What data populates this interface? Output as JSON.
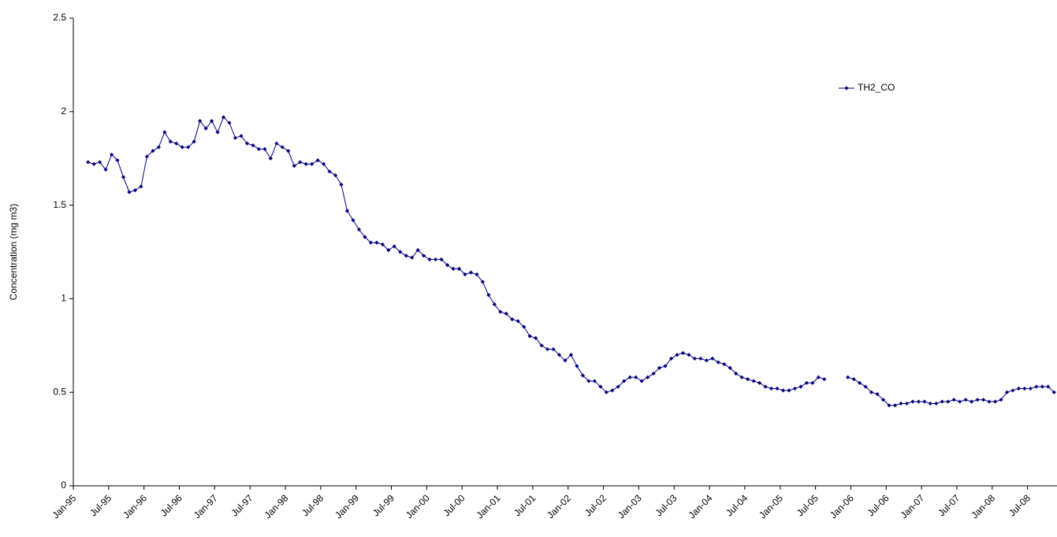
{
  "chart_data": {
    "type": "line",
    "y_label": "Concentration (mg m3)",
    "categories": [
      "Jan-95",
      null,
      null,
      null,
      null,
      null,
      "Jul-95",
      null,
      null,
      null,
      null,
      null,
      "Jan-96",
      null,
      null,
      null,
      null,
      null,
      "Jul-96",
      null,
      null,
      null,
      null,
      null,
      "Jan-97",
      null,
      null,
      null,
      null,
      null,
      "Jul-97",
      null,
      null,
      null,
      null,
      null,
      "Jan-98",
      null,
      null,
      null,
      null,
      null,
      "Jul-98",
      null,
      null,
      null,
      null,
      null,
      "Jan-99",
      null,
      null,
      null,
      null,
      null,
      "Jul-99",
      null,
      null,
      null,
      null,
      null,
      "Jan-00",
      null,
      null,
      null,
      null,
      null,
      "Jul-00",
      null,
      null,
      null,
      null,
      null,
      "Jan-01",
      null,
      null,
      null,
      null,
      null,
      "Jul-01",
      null,
      null,
      null,
      null,
      null,
      "Jan-02",
      null,
      null,
      null,
      null,
      null,
      "Jul-02",
      null,
      null,
      null,
      null,
      null,
      "Jan-03",
      null,
      null,
      null,
      null,
      null,
      "Jul-03",
      null,
      null,
      null,
      null,
      null,
      "Jan-04",
      null,
      null,
      null,
      null,
      null,
      "Jul-04",
      null,
      null,
      null,
      null,
      null,
      "Jan-05",
      null,
      null,
      null,
      null,
      null,
      "Jul-05",
      null,
      null,
      null,
      null,
      null,
      "Jan-06",
      null,
      null,
      null,
      null,
      null,
      "Jul-06",
      null,
      null,
      null,
      null,
      null,
      "Jan-07",
      null,
      null,
      null,
      null,
      null,
      "Jul-07",
      null,
      null,
      null,
      null,
      null,
      "Jan-08",
      null,
      null,
      null,
      null,
      null,
      "Jul-08",
      null,
      null,
      null,
      null
    ],
    "series": [
      {
        "name": "TH2_CO",
        "color": "#000080",
        "values": [
          null,
          null,
          1.73,
          1.72,
          1.73,
          1.69,
          1.77,
          1.74,
          1.65,
          1.57,
          1.58,
          1.6,
          1.76,
          1.79,
          1.81,
          1.89,
          1.84,
          1.83,
          1.81,
          1.81,
          1.84,
          1.95,
          1.91,
          1.95,
          1.89,
          1.97,
          1.94,
          1.86,
          1.87,
          1.83,
          1.82,
          1.8,
          1.8,
          1.75,
          1.83,
          1.81,
          1.79,
          1.71,
          1.73,
          1.72,
          1.72,
          1.74,
          1.72,
          1.68,
          1.66,
          1.61,
          1.47,
          1.42,
          1.37,
          1.33,
          1.3,
          1.3,
          1.29,
          1.26,
          1.28,
          1.25,
          1.23,
          1.22,
          1.26,
          1.23,
          1.21,
          1.21,
          1.21,
          1.18,
          1.16,
          1.16,
          1.13,
          1.14,
          1.13,
          1.09,
          1.02,
          0.97,
          0.93,
          0.92,
          0.89,
          0.88,
          0.85,
          0.8,
          0.79,
          0.75,
          0.73,
          0.73,
          0.7,
          0.67,
          0.7,
          0.64,
          0.59,
          0.56,
          0.56,
          0.53,
          0.5,
          0.51,
          0.53,
          0.56,
          0.58,
          0.58,
          0.56,
          0.58,
          0.6,
          0.63,
          0.64,
          0.68,
          0.7,
          0.71,
          0.7,
          0.68,
          0.68,
          0.67,
          0.68,
          0.66,
          0.65,
          0.63,
          0.6,
          0.58,
          0.57,
          0.56,
          0.55,
          0.53,
          0.52,
          0.52,
          0.51,
          0.51,
          0.52,
          0.53,
          0.55,
          0.55,
          0.58,
          0.57,
          null,
          null,
          null,
          0.58,
          0.57,
          0.55,
          0.53,
          0.5,
          0.49,
          0.46,
          0.43,
          0.43,
          0.44,
          0.44,
          0.45,
          0.45,
          0.45,
          0.44,
          0.44,
          0.45,
          0.45,
          0.46,
          0.45,
          0.46,
          0.45,
          0.46,
          0.46,
          0.45,
          0.45,
          0.46,
          0.5,
          0.51,
          0.52,
          0.52,
          0.52,
          0.53,
          0.53,
          0.53,
          0.5
        ]
      }
    ],
    "ylim": [
      0,
      2.5
    ],
    "yticks": [
      0,
      0.5,
      1,
      1.5,
      2,
      2.5
    ],
    "grid": false,
    "legend": "top-right"
  }
}
